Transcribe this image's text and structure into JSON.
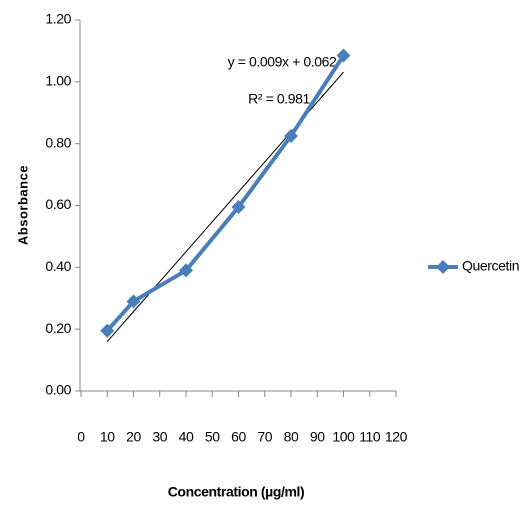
{
  "chart_data": {
    "type": "line",
    "x_label": "Concentration (µg/ml)",
    "y_label": "Absorbance",
    "x": [
      10,
      20,
      40,
      60,
      80,
      100
    ],
    "series": [
      {
        "name": "Quercetin",
        "color": "#4a7ebb",
        "values": [
          0.195,
          0.29,
          0.39,
          0.595,
          0.825,
          1.085
        ]
      }
    ],
    "xlim": [
      0,
      120
    ],
    "xticks": [
      0,
      10,
      20,
      30,
      40,
      50,
      60,
      70,
      80,
      90,
      100,
      110,
      120
    ],
    "ylim": [
      0,
      1.2
    ],
    "yticks": [
      {
        "value": 0,
        "label": "0.00"
      },
      {
        "value": 0.2,
        "label": "0.20"
      },
      {
        "value": 0.4,
        "label": "0.40"
      },
      {
        "value": 0.6,
        "label": "0.60"
      },
      {
        "value": 0.8,
        "label": "0.80"
      },
      {
        "value": 1.0,
        "label": "1.00"
      },
      {
        "value": 1.2,
        "label": "1.20"
      }
    ],
    "annotations": [
      "y = 0.009x + 0.062",
      "R² = 0.981"
    ],
    "trendline": true,
    "grid": false,
    "legend": "right"
  }
}
